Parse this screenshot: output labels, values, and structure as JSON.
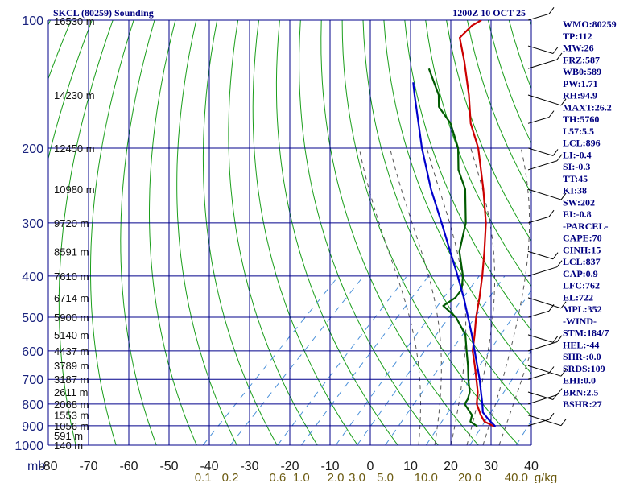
{
  "header": {
    "station": "SKCL (80259) Sounding",
    "time": "1200Z 10 OCT 25"
  },
  "chart_data": {
    "type": "line",
    "title": "SKCL (80259) Sounding",
    "chart_kind": "skew-t log-p",
    "pressure_axis": {
      "unit_label": "mb",
      "ticks": [
        100,
        200,
        300,
        400,
        500,
        600,
        700,
        800,
        900,
        1000
      ],
      "range": [
        100,
        1000
      ]
    },
    "temperature_axis": {
      "ticks": [
        -80,
        -70,
        -60,
        -50,
        -40,
        -30,
        -20,
        -10,
        0,
        10,
        20,
        30,
        40
      ],
      "tick_labels": [
        "-80",
        "-70",
        "-60",
        "-50",
        "-40",
        "-30",
        "-20",
        "-10",
        "0",
        "10",
        "20",
        "30",
        "40"
      ],
      "range": [
        -80,
        40
      ]
    },
    "mixing_ratio_axis": {
      "labels": [
        "0.1",
        "0.2",
        "0.6",
        "1.0",
        "2.0",
        "3.0",
        "5.0",
        "10.0",
        "20.0",
        "40.0"
      ],
      "unit": "g/kg"
    },
    "height_labels": [
      {
        "p": 100,
        "label": "16530 m"
      },
      {
        "p": 150,
        "label": "14230 m"
      },
      {
        "p": 200,
        "label": "12450 m"
      },
      {
        "p": 250,
        "label": "10980 m"
      },
      {
        "p": 300,
        "label": "9720 m"
      },
      {
        "p": 350,
        "label": "8591 m"
      },
      {
        "p": 400,
        "label": "7610 m"
      },
      {
        "p": 450,
        "label": "6714 m"
      },
      {
        "p": 500,
        "label": "5900 m"
      },
      {
        "p": 550,
        "label": "5140 m"
      },
      {
        "p": 600,
        "label": "4437 m"
      },
      {
        "p": 650,
        "label": "3789 m"
      },
      {
        "p": 700,
        "label": "3187 m"
      },
      {
        "p": 750,
        "label": "2611 m"
      },
      {
        "p": 800,
        "label": "2068 m"
      },
      {
        "p": 850,
        "label": "1553 m"
      },
      {
        "p": 900,
        "label": "1056 m"
      },
      {
        "p": 950,
        "label": "591 m"
      },
      {
        "p": 1000,
        "label": "140 m"
      }
    ],
    "series": [
      {
        "name": "Temperature",
        "color": "#cc0000",
        "points": [
          {
            "p": 904,
            "t": 26.2
          },
          {
            "p": 880,
            "t": 22.5
          },
          {
            "p": 850,
            "t": 20.0
          },
          {
            "p": 800,
            "t": 16.2
          },
          {
            "p": 750,
            "t": 13.5
          },
          {
            "p": 700,
            "t": 10.0
          },
          {
            "p": 650,
            "t": 6.2
          },
          {
            "p": 600,
            "t": 2.0
          },
          {
            "p": 550,
            "t": -1.5
          },
          {
            "p": 500,
            "t": -5.5
          },
          {
            "p": 450,
            "t": -9.5
          },
          {
            "p": 400,
            "t": -14.2
          },
          {
            "p": 350,
            "t": -19.8
          },
          {
            "p": 300,
            "t": -26.5
          },
          {
            "p": 250,
            "t": -35.5
          },
          {
            "p": 200,
            "t": -47.0
          },
          {
            "p": 175,
            "t": -55.0
          },
          {
            "p": 150,
            "t": -62.5
          },
          {
            "p": 125,
            "t": -72.0
          },
          {
            "p": 110,
            "t": -79.0
          },
          {
            "p": 103,
            "t": -79.0
          },
          {
            "p": 100,
            "t": -78.0
          }
        ]
      },
      {
        "name": "Dewpoint",
        "color": "#005a00",
        "points": [
          {
            "p": 904,
            "t": 22.0
          },
          {
            "p": 880,
            "t": 19.0
          },
          {
            "p": 850,
            "t": 17.8
          },
          {
            "p": 800,
            "t": 13.2
          },
          {
            "p": 780,
            "t": 12.8
          },
          {
            "p": 750,
            "t": 11.5
          },
          {
            "p": 700,
            "t": 8.0
          },
          {
            "p": 650,
            "t": 4.5
          },
          {
            "p": 600,
            "t": 0.5
          },
          {
            "p": 550,
            "t": -3.8
          },
          {
            "p": 500,
            "t": -10.5
          },
          {
            "p": 470,
            "t": -16.5
          },
          {
            "p": 450,
            "t": -15.5
          },
          {
            "p": 430,
            "t": -16.0
          },
          {
            "p": 400,
            "t": -19.0
          },
          {
            "p": 350,
            "t": -26.0
          },
          {
            "p": 300,
            "t": -31.5
          },
          {
            "p": 250,
            "t": -40.0
          },
          {
            "p": 225,
            "t": -46.5
          },
          {
            "p": 200,
            "t": -52.0
          },
          {
            "p": 175,
            "t": -60.0
          },
          {
            "p": 160,
            "t": -67.0
          },
          {
            "p": 150,
            "t": -70.0
          },
          {
            "p": 130,
            "t": -79.0
          }
        ]
      },
      {
        "name": "Parcel",
        "color": "#0000cc",
        "points": [
          {
            "p": 904,
            "t": 26.5
          },
          {
            "p": 870,
            "t": 23.0
          },
          {
            "p": 837,
            "t": 19.8
          },
          {
            "p": 800,
            "t": 17.6
          },
          {
            "p": 750,
            "t": 14.3
          },
          {
            "p": 700,
            "t": 10.8
          },
          {
            "p": 650,
            "t": 6.8
          },
          {
            "p": 600,
            "t": 2.5
          },
          {
            "p": 550,
            "t": -2.2
          },
          {
            "p": 500,
            "t": -7.5
          },
          {
            "p": 450,
            "t": -13.4
          },
          {
            "p": 400,
            "t": -20.3
          },
          {
            "p": 350,
            "t": -28.3
          },
          {
            "p": 300,
            "t": -37.5
          },
          {
            "p": 250,
            "t": -48.5
          },
          {
            "p": 200,
            "t": -61.0
          },
          {
            "p": 150,
            "t": -76.0
          },
          {
            "p": 140,
            "t": -79.5
          }
        ]
      }
    ]
  },
  "indices": [
    "WMO:80259",
    "TP:112",
    "MW:26",
    "FRZ:587",
    "WB0:589",
    "PW:1.71",
    "RH:94.9",
    "MAXT:26.2",
    "TH:5760",
    "L57:5.5",
    "LCL:896",
    "LI:-0.4",
    "SI:-0.3",
    "TT:45",
    "KI:38",
    "SW:202",
    "EI:-0.8",
    "-PARCEL-",
    "CAPE:70",
    "CINH:15",
    "LCL:837",
    "CAP:0.9",
    "LFC:762",
    "EL:722",
    "MPL:352",
    "-WIND-",
    "STM:184/7",
    "HEL:-44",
    "SHR-:0.0",
    "SRDS:109",
    "EHI:0.0",
    "BRN:2.5",
    "BSHR:27"
  ],
  "colors": {
    "grid": "#00008b",
    "dry_adiabat": "#1a9e1a",
    "moist_adiabat": "#555555",
    "mixing_ratio": "#4a90d9",
    "temperature": "#cc0000",
    "dewpoint": "#005a00",
    "parcel": "#0000cc"
  }
}
